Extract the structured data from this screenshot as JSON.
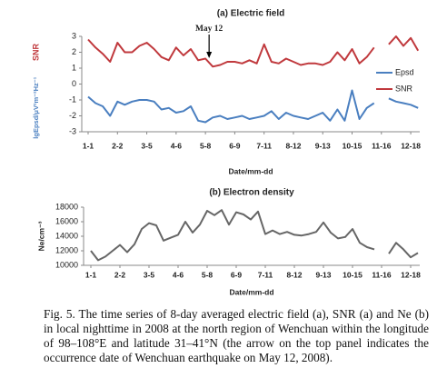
{
  "chart_data": [
    {
      "type": "line",
      "title": "(a) Electric field",
      "ylabel": "lgEpsd/μV²m⁻²Hz⁻¹",
      "y_top_label": "SNR",
      "xlabel": "Date/mm-dd",
      "annotation": "May 12",
      "categories": [
        "1-1",
        null,
        null,
        null,
        "2-2",
        null,
        null,
        null,
        "3-5",
        null,
        null,
        null,
        "4-6",
        null,
        null,
        null,
        "5-8",
        null,
        null,
        null,
        "6-9",
        null,
        null,
        null,
        "7-11",
        null,
        null,
        null,
        "8-12",
        null,
        null,
        null,
        "9-13",
        null,
        null,
        null,
        "10-15",
        null,
        null,
        null,
        "11-16",
        null,
        null,
        null,
        "12-18",
        null
      ],
      "series": [
        {
          "name": "Epsd",
          "color": "#4a7fc0",
          "values": [
            -0.8,
            -1.2,
            -1.4,
            -2.0,
            -1.1,
            -1.3,
            -1.1,
            -1.0,
            -1.0,
            -1.1,
            -1.6,
            -1.5,
            -1.8,
            -1.7,
            -1.4,
            -2.3,
            -2.4,
            -2.1,
            -2.0,
            -2.2,
            -2.1,
            -2.0,
            -2.2,
            -2.1,
            -2.0,
            -1.7,
            -2.2,
            -1.8,
            -2.0,
            -2.1,
            -2.2,
            -2.0,
            -1.8,
            -2.3,
            -1.6,
            -2.3,
            -0.4,
            -2.2,
            -1.5,
            -1.2,
            null,
            -0.9,
            -1.1,
            -1.2,
            -1.3,
            -1.5
          ]
        },
        {
          "name": "SNR",
          "color": "#c0393d",
          "values": [
            2.8,
            2.3,
            1.9,
            1.4,
            2.6,
            2.0,
            2.0,
            2.4,
            2.6,
            2.2,
            1.7,
            1.5,
            2.3,
            1.8,
            2.2,
            1.5,
            1.6,
            1.1,
            1.2,
            1.4,
            1.4,
            1.3,
            1.5,
            1.3,
            2.5,
            1.4,
            1.3,
            1.6,
            1.4,
            1.2,
            1.3,
            1.3,
            1.2,
            1.4,
            2.0,
            1.5,
            2.2,
            1.3,
            1.7,
            2.3,
            null,
            2.5,
            3.0,
            2.4,
            2.9,
            2.1
          ]
        }
      ],
      "ylim": [
        -3,
        3
      ],
      "yticks": [
        -3,
        -2,
        -1,
        0,
        1,
        2,
        3
      ],
      "legend": "right",
      "grid": false
    },
    {
      "type": "line",
      "title": "(b) Electron density",
      "ylabel": "Ne/cm⁻³",
      "xlabel": "Date/mm-dd",
      "categories": [
        "1-1",
        null,
        null,
        null,
        "2-2",
        null,
        null,
        null,
        "3-5",
        null,
        null,
        null,
        "4-6",
        null,
        null,
        null,
        "5-8",
        null,
        null,
        null,
        "6-9",
        null,
        null,
        null,
        "7-11",
        null,
        null,
        null,
        "8-12",
        null,
        null,
        null,
        "9-13",
        null,
        null,
        null,
        "10-15",
        null,
        null,
        null,
        "11-16",
        null,
        null,
        null,
        "12-18",
        null
      ],
      "series": [
        {
          "name": "Ne",
          "color": "#666666",
          "values": [
            12000,
            10700,
            11200,
            12000,
            12800,
            11800,
            12900,
            15000,
            15800,
            15500,
            13400,
            13800,
            14200,
            16000,
            14500,
            15600,
            17500,
            16900,
            17600,
            15600,
            17300,
            17000,
            16300,
            17400,
            14300,
            14800,
            14300,
            14600,
            14200,
            14100,
            14300,
            14600,
            15900,
            14500,
            13700,
            13900,
            15000,
            13100,
            12500,
            12200,
            null,
            11600,
            13100,
            12200,
            11100,
            11700
          ]
        }
      ],
      "ylim": [
        10000,
        18000
      ],
      "yticks": [
        10000,
        12000,
        14000,
        16000,
        18000
      ],
      "grid": false
    }
  ],
  "caption": "Fig. 5.  The time series of 8-day averaged electric field (a), SNR (a) and Ne (b) in local nighttime in 2008 at the north region of Wenchuan within the longitude of 98–108°E and latitude 31–41°N (the arrow on the top panel indicates the occurrence date of Wenchuan earthquake on May 12, 2008)."
}
